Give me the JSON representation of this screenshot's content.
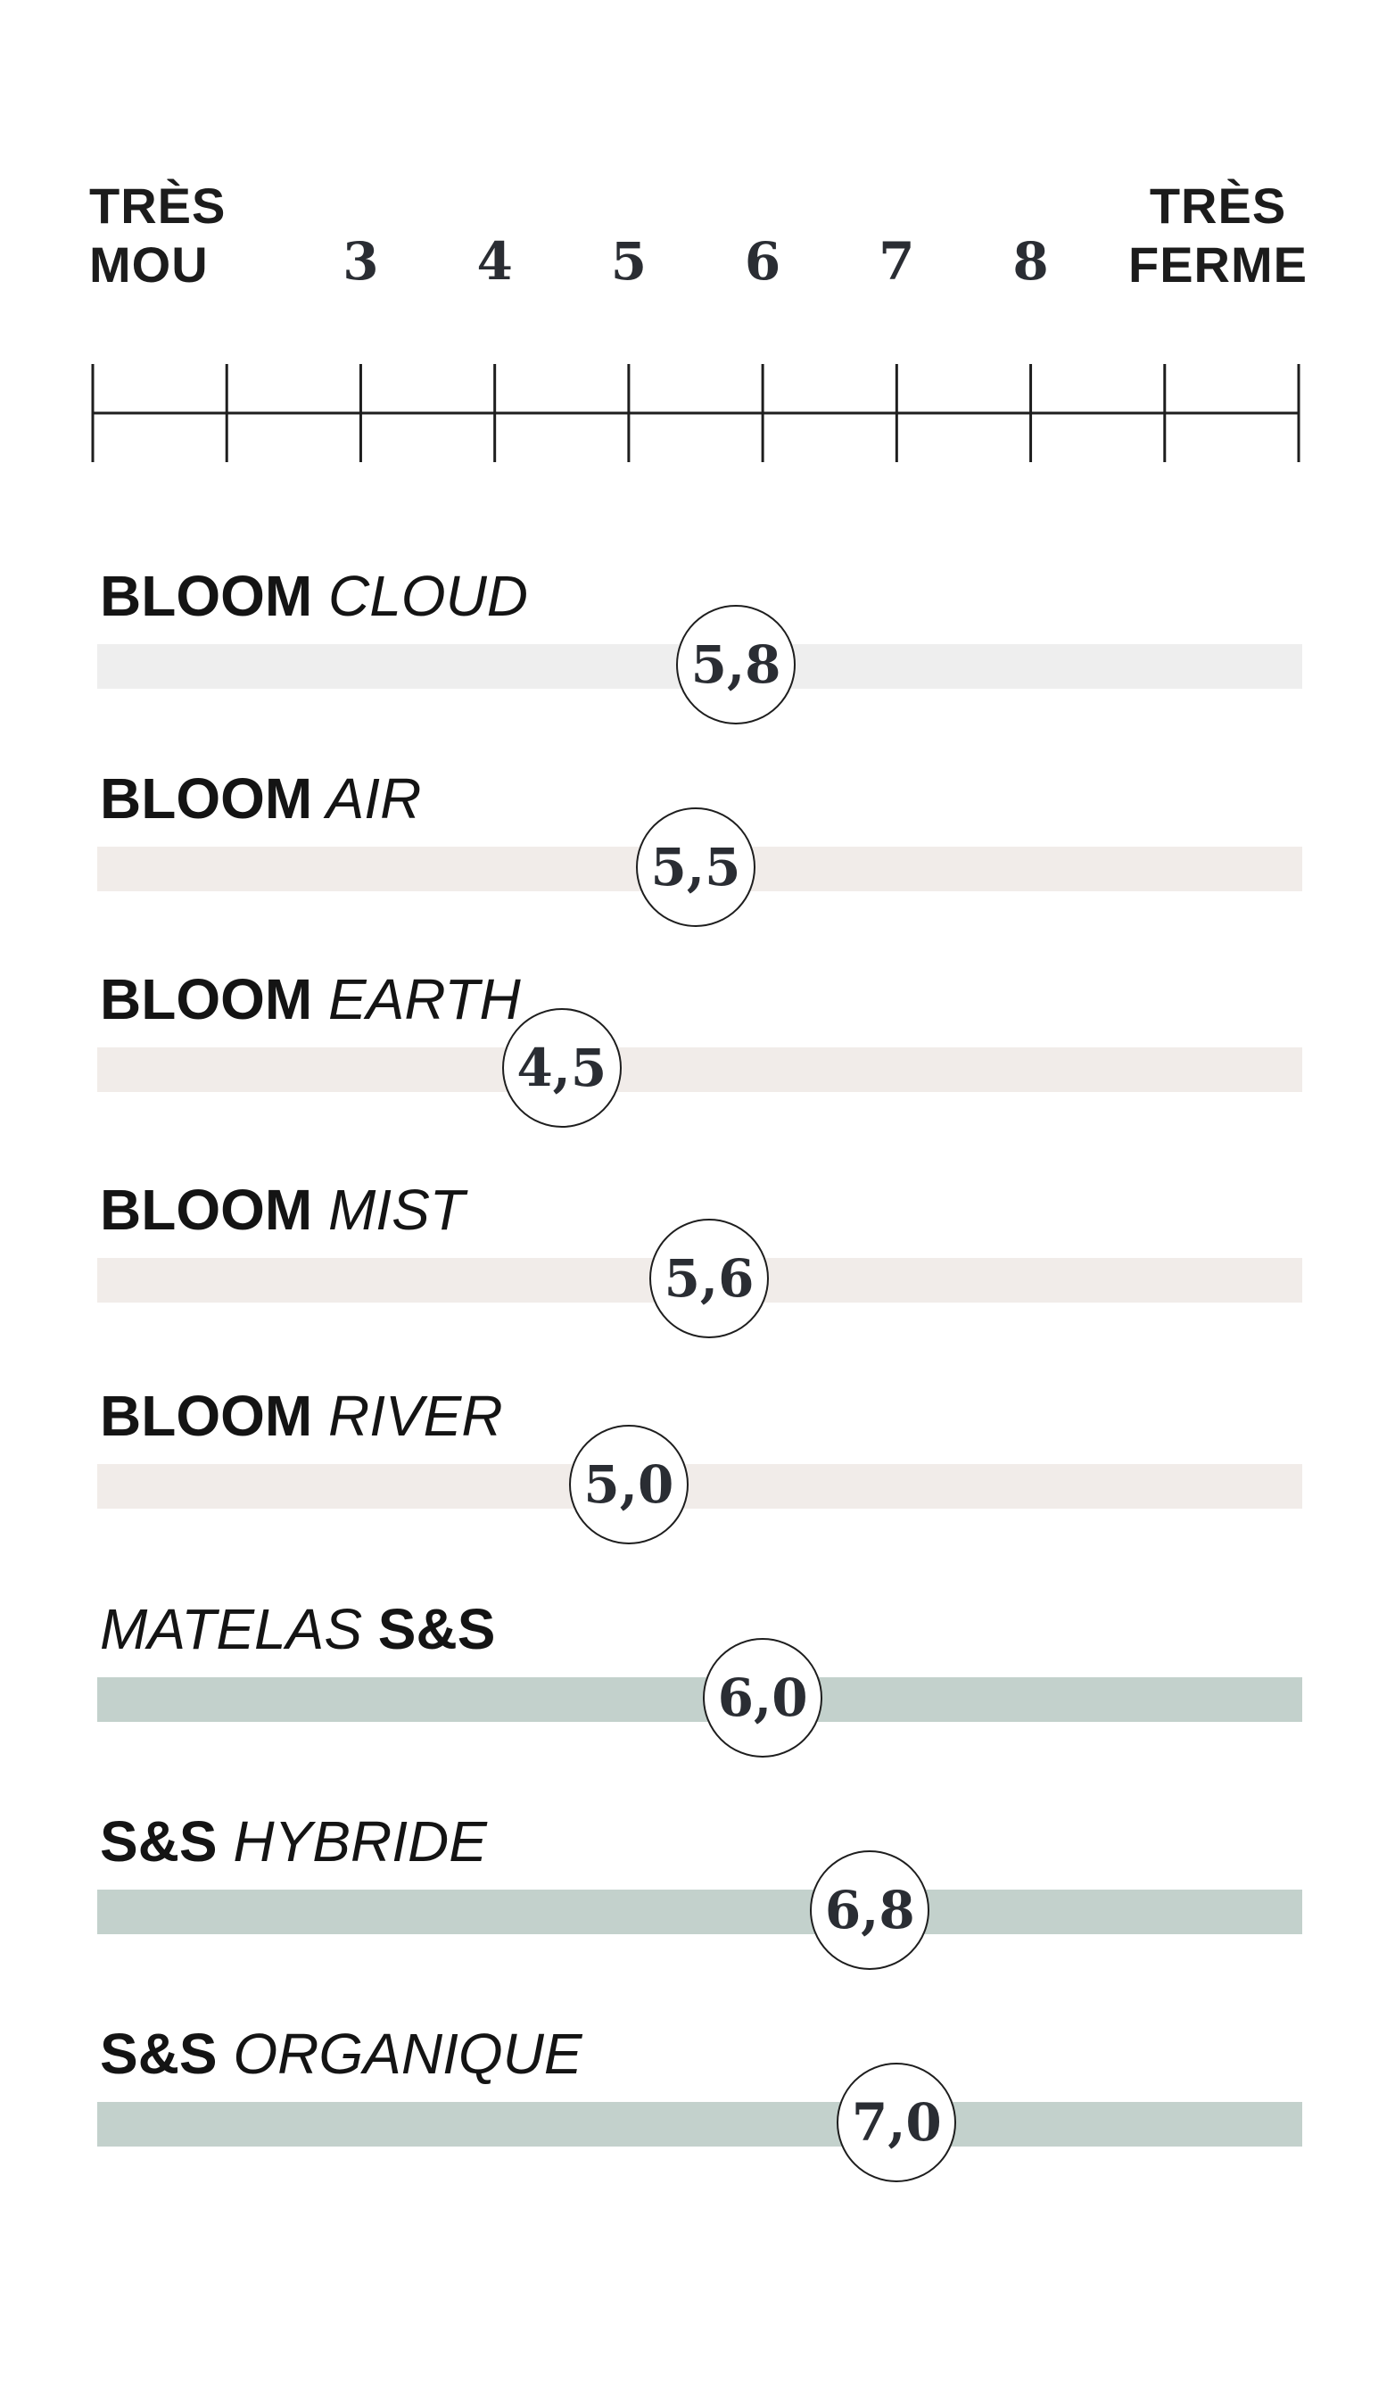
{
  "chart_data": {
    "type": "scatter",
    "title": "",
    "scale": {
      "min_label": [
        "TRÈS",
        "MOU"
      ],
      "max_label": [
        "TRÈS",
        "FERME"
      ],
      "min": 1,
      "max": 10,
      "tick_labels": [
        "3",
        "4",
        "5",
        "6",
        "7",
        "8"
      ],
      "tick_values": [
        3,
        4,
        5,
        6,
        7,
        8
      ]
    },
    "products": [
      {
        "name_parts": [
          {
            "text": "BLOOM",
            "style": "bold"
          },
          {
            "text": "CLOUD",
            "style": "italic"
          }
        ],
        "value": 5.8,
        "label": "5,8",
        "bar_color": "#eeeeee"
      },
      {
        "name_parts": [
          {
            "text": "BLOOM",
            "style": "bold"
          },
          {
            "text": "AIR",
            "style": "italic"
          }
        ],
        "value": 5.5,
        "label": "5,5",
        "bar_color": "#f1ece9"
      },
      {
        "name_parts": [
          {
            "text": "BLOOM",
            "style": "bold"
          },
          {
            "text": "EARTH",
            "style": "italic"
          }
        ],
        "value": 4.5,
        "label": "4,5",
        "bar_color": "#f1ece9"
      },
      {
        "name_parts": [
          {
            "text": "BLOOM",
            "style": "bold"
          },
          {
            "text": "MIST",
            "style": "italic"
          }
        ],
        "value": 5.6,
        "label": "5,6",
        "bar_color": "#f1ece9"
      },
      {
        "name_parts": [
          {
            "text": "BLOOM",
            "style": "bold"
          },
          {
            "text": "RIVER",
            "style": "italic"
          }
        ],
        "value": 5.0,
        "label": "5,0",
        "bar_color": "#f1ece9"
      },
      {
        "name_parts": [
          {
            "text": "MATELAS",
            "style": "italic"
          },
          {
            "text": "S&S",
            "style": "bold"
          }
        ],
        "value": 6.0,
        "label": "6,0",
        "bar_color": "#c3d1cc"
      },
      {
        "name_parts": [
          {
            "text": "S&S",
            "style": "bold"
          },
          {
            "text": "HYBRIDE",
            "style": "italic"
          }
        ],
        "value": 6.8,
        "label": "6,8",
        "bar_color": "#c3d1cc"
      },
      {
        "name_parts": [
          {
            "text": "S&S",
            "style": "bold"
          },
          {
            "text": "ORGANIQUE",
            "style": "italic"
          }
        ],
        "value": 7.0,
        "label": "7,0",
        "bar_color": "#c3d1cc"
      }
    ],
    "colors": {
      "text": "#141414",
      "number": "#2a2d33",
      "axis": "#1e1e1e",
      "marker_fill": "#ffffff",
      "marker_border": "#1e1e1e"
    }
  }
}
